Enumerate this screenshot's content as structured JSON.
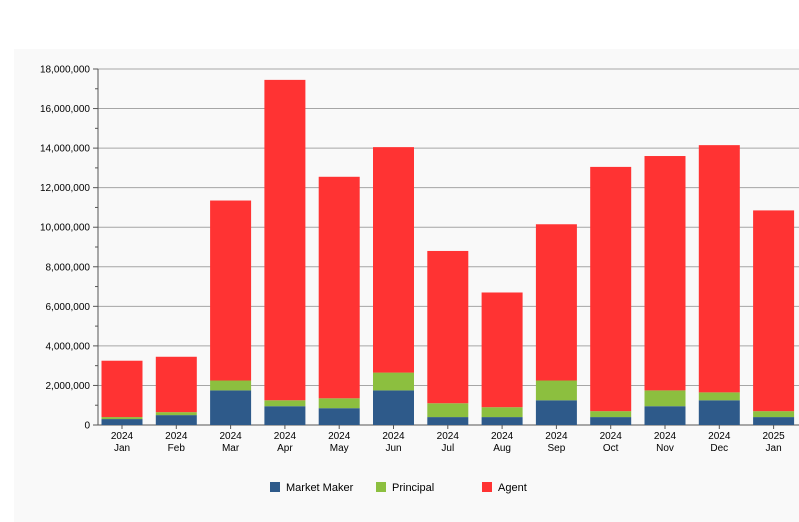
{
  "chart_data": {
    "type": "bar",
    "stacked": true,
    "title": "",
    "xlabel": "",
    "ylabel": "",
    "categories": [
      [
        "2024",
        "Jan"
      ],
      [
        "2024",
        "Feb"
      ],
      [
        "2024",
        "Mar"
      ],
      [
        "2024",
        "Apr"
      ],
      [
        "2024",
        "May"
      ],
      [
        "2024",
        "Jun"
      ],
      [
        "2024",
        "Jul"
      ],
      [
        "2024",
        "Aug"
      ],
      [
        "2024",
        "Sep"
      ],
      [
        "2024",
        "Oct"
      ],
      [
        "2024",
        "Nov"
      ],
      [
        "2024",
        "Dec"
      ],
      [
        "2025",
        "Jan"
      ]
    ],
    "series": [
      {
        "name": "Market Maker",
        "color": "#2e5a8a",
        "values": [
          300000,
          500000,
          1750000,
          950000,
          850000,
          1750000,
          400000,
          400000,
          1250000,
          400000,
          950000,
          1250000,
          400000
        ]
      },
      {
        "name": "Principal",
        "color": "#8cbf3f",
        "values": [
          100000,
          150000,
          500000,
          300000,
          500000,
          900000,
          700000,
          500000,
          1000000,
          300000,
          800000,
          400000,
          300000
        ]
      },
      {
        "name": "Agent",
        "color": "#ff3333",
        "values": [
          2850000,
          2800000,
          9100000,
          16200000,
          11200000,
          11400000,
          7700000,
          5800000,
          7900000,
          12350000,
          11850000,
          12500000,
          10150000
        ]
      }
    ],
    "ylim": [
      0,
      18000000
    ],
    "yticks": [
      "0",
      "2,000,000",
      "4,000,000",
      "6,000,000",
      "8,000,000",
      "10,000,000",
      "12,000,000",
      "14,000,000",
      "16,000,000",
      "18,000,000"
    ],
    "ytick_values": [
      0,
      2000000,
      4000000,
      6000000,
      8000000,
      10000000,
      12000000,
      14000000,
      16000000,
      18000000
    ],
    "grid": true,
    "legend_position": "bottom-center"
  }
}
